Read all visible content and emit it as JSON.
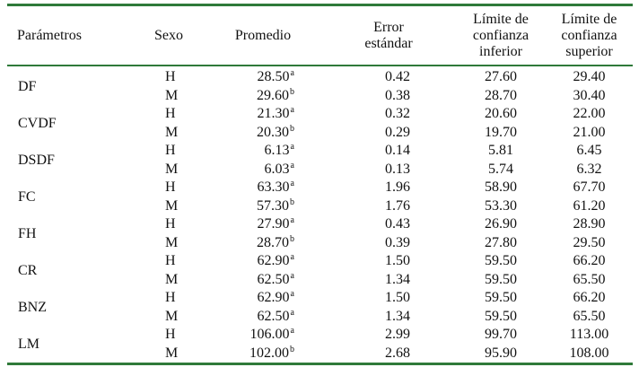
{
  "table": {
    "headers": {
      "parametros": "Parámetros",
      "sexo": "Sexo",
      "promedio": "Promedio",
      "error": [
        "Error",
        "estándar"
      ],
      "limite_inferior": [
        "Límite de",
        "confianza",
        "inferior"
      ],
      "limite_superior": [
        "Límite de",
        "confianza",
        "superior"
      ]
    },
    "groups": [
      {
        "param": "DF",
        "rows": [
          {
            "sexo": "H",
            "promedio": "28.50",
            "sup": "a",
            "error": "0.42",
            "inferior": "27.60",
            "superior": "29.40"
          },
          {
            "sexo": "M",
            "promedio": "29.60",
            "sup": "b",
            "error": "0.38",
            "inferior": "28.70",
            "superior": "30.40"
          }
        ]
      },
      {
        "param": "CVDF",
        "rows": [
          {
            "sexo": "H",
            "promedio": "21.30",
            "sup": "a",
            "error": "0.32",
            "inferior": "20.60",
            "superior": "22.00"
          },
          {
            "sexo": "M",
            "promedio": "20.30",
            "sup": "b",
            "error": "0.29",
            "inferior": "19.70",
            "superior": "21.00"
          }
        ]
      },
      {
        "param": "DSDF",
        "rows": [
          {
            "sexo": "H",
            "promedio": "6.13",
            "sup": "a",
            "error": "0.14",
            "inferior": "5.81",
            "superior": "6.45"
          },
          {
            "sexo": "M",
            "promedio": "6.03",
            "sup": "a",
            "error": "0.13",
            "inferior": "5.74",
            "superior": "6.32"
          }
        ]
      },
      {
        "param": "FC",
        "rows": [
          {
            "sexo": "H",
            "promedio": "63.30",
            "sup": "a",
            "error": "1.96",
            "inferior": "58.90",
            "superior": "67.70"
          },
          {
            "sexo": "M",
            "promedio": "57.30",
            "sup": "b",
            "error": "1.76",
            "inferior": "53.30",
            "superior": "61.20"
          }
        ]
      },
      {
        "param": "FH",
        "rows": [
          {
            "sexo": "H",
            "promedio": "27.90",
            "sup": "a",
            "error": "0.43",
            "inferior": "26.90",
            "superior": "28.90"
          },
          {
            "sexo": "M",
            "promedio": "28.70",
            "sup": "b",
            "error": "0.39",
            "inferior": "27.80",
            "superior": "29.50"
          }
        ]
      },
      {
        "param": "CR",
        "rows": [
          {
            "sexo": "H",
            "promedio": "62.90",
            "sup": "a",
            "error": "1.50",
            "inferior": "59.50",
            "superior": "66.20"
          },
          {
            "sexo": "M",
            "promedio": "62.50",
            "sup": "a",
            "error": "1.34",
            "inferior": "59.50",
            "superior": "65.50"
          }
        ]
      },
      {
        "param": "BNZ",
        "rows": [
          {
            "sexo": "H",
            "promedio": "62.90",
            "sup": "a",
            "error": "1.50",
            "inferior": "59.50",
            "superior": "66.20"
          },
          {
            "sexo": "M",
            "promedio": "62.50",
            "sup": "a",
            "error": "1.34",
            "inferior": "59.50",
            "superior": "65.50"
          }
        ]
      },
      {
        "param": "LM",
        "rows": [
          {
            "sexo": "H",
            "promedio": "106.00",
            "sup": "a",
            "error": "2.99",
            "inferior": "99.70",
            "superior": "113.00"
          },
          {
            "sexo": "M",
            "promedio": "102.00",
            "sup": "b",
            "error": "2.68",
            "inferior": "95.90",
            "superior": "108.00"
          }
        ]
      }
    ],
    "rule_color": "#2f7a3a"
  }
}
